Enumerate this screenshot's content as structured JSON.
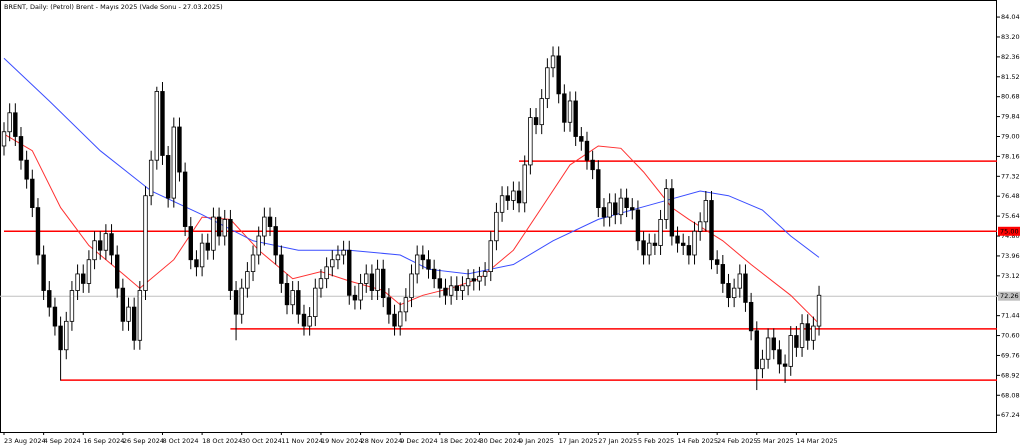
{
  "chart_data": {
    "type": "candlestick",
    "title": "BRENT, Daily:  (Petrol) Brent - Mayıs 2025 (Vade Sonu - 27.03.2025)",
    "categories": [
      "23 Aug 2024",
      null,
      null,
      null,
      null,
      null,
      null,
      "4 Sep 2024",
      null,
      null,
      null,
      null,
      null,
      null,
      "16 Sep 2024",
      null,
      null,
      null,
      null,
      null,
      null,
      "26 Sep 2024",
      null,
      null,
      null,
      null,
      null,
      null,
      "8 Oct 2024",
      null,
      null,
      null,
      null,
      null,
      null,
      "18 Oct 2024",
      null,
      null,
      null,
      null,
      null,
      null,
      "30 Oct 2024",
      null,
      null,
      null,
      null,
      null,
      null,
      "11 Nov 2024",
      null,
      null,
      null,
      null,
      null,
      null,
      "19 Nov 2024",
      null,
      null,
      null,
      null,
      null,
      null,
      "28 Nov 2024",
      null,
      null,
      null,
      null,
      null,
      null,
      "9 Dec 2024",
      null,
      null,
      null,
      null,
      null,
      null,
      "18 Dec 2024",
      null,
      null,
      null,
      null,
      null,
      null,
      "30 Dec 2024",
      null,
      null,
      null,
      null,
      null,
      null,
      "9 Jan 2025",
      null,
      null,
      null,
      null,
      null,
      null,
      "17 Jan 2025",
      null,
      null,
      null,
      null,
      null,
      null,
      "27 Jan 2025",
      null,
      null,
      null,
      null,
      null,
      null,
      "5 Feb 2025",
      null,
      null,
      null,
      null,
      null,
      null,
      "14 Feb 2025",
      null,
      null,
      null,
      null,
      null,
      null,
      "24 Feb 2025",
      null,
      null,
      null,
      null,
      null,
      null,
      "5 Mar 2025",
      null,
      null,
      null,
      null,
      null,
      null,
      "14 Mar 2025",
      null,
      null,
      null,
      null
    ],
    "open": [
      78.6,
      79.2,
      80.0,
      79.0,
      78.0,
      77.2,
      76.0,
      74.0,
      72.5,
      71.8,
      71.0,
      70.0,
      71.2,
      72.5,
      73.2,
      72.8,
      73.8,
      74.6,
      74.2,
      74.9,
      74.0,
      72.6,
      71.2,
      71.8,
      70.4,
      72.5,
      76.5,
      78.0,
      80.9,
      78.2,
      76.4,
      79.4,
      77.5,
      75.2,
      73.8,
      73.5,
      74.5,
      74.2,
      75.6,
      74.8,
      75.5,
      72.5,
      71.5,
      72.6,
      73.3,
      74.0,
      74.8,
      75.6,
      75.2,
      74.0,
      72.8,
      71.9,
      72.5,
      71.5,
      71.0,
      71.4,
      72.6,
      73.0,
      73.5,
      73.8,
      74.0,
      74.2,
      72.3,
      72.1,
      72.8,
      73.2,
      72.5,
      73.4,
      72.2,
      71.5,
      71.0,
      71.6,
      72.2,
      73.2,
      74.0,
      73.8,
      73.4,
      73.0,
      72.6,
      72.3,
      72.7,
      72.5,
      72.7,
      73.0,
      72.9,
      73.1,
      73.3,
      74.6,
      75.8,
      76.5,
      76.3,
      76.7,
      76.2,
      77.8,
      79.8,
      79.5,
      80.6,
      81.9,
      82.4,
      80.8,
      79.6,
      80.5,
      79.0,
      78.8,
      78.0,
      77.6,
      76.0,
      75.6,
      76.2,
      75.7,
      76.4,
      76.0,
      75.9,
      74.6,
      74.0,
      74.5,
      74.4,
      75.5,
      76.8,
      74.8,
      74.5,
      74.4,
      74.0,
      75.0,
      75.4,
      76.3,
      73.8,
      73.6,
      72.8,
      72.2,
      72.6,
      73.2,
      72.0,
      70.8,
      69.2,
      69.6,
      70.5,
      70.0,
      69.4,
      69.3,
      70.6,
      70.1,
      71.1,
      70.4,
      71.0
    ],
    "high": [
      79.6,
      80.4,
      80.4,
      79.4,
      78.4,
      77.6,
      76.4,
      74.4,
      72.9,
      72.2,
      71.4,
      71.6,
      72.9,
      73.6,
      73.6,
      74.2,
      75.0,
      75.0,
      75.3,
      75.3,
      74.4,
      73.0,
      72.2,
      72.2,
      72.9,
      76.9,
      78.4,
      81.1,
      81.3,
      78.6,
      79.8,
      79.8,
      77.9,
      75.6,
      74.2,
      74.9,
      74.9,
      76.0,
      76.0,
      75.9,
      75.9,
      72.9,
      73.0,
      73.7,
      74.4,
      75.2,
      76.0,
      76.0,
      75.6,
      74.4,
      73.2,
      72.9,
      72.9,
      71.9,
      71.8,
      73.0,
      73.4,
      73.9,
      74.2,
      74.4,
      74.6,
      74.6,
      72.7,
      73.2,
      73.6,
      73.6,
      73.8,
      73.8,
      72.6,
      71.9,
      72.0,
      72.6,
      73.6,
      74.4,
      74.4,
      74.2,
      73.8,
      73.4,
      73.0,
      73.1,
      73.1,
      73.1,
      73.4,
      73.4,
      73.5,
      73.7,
      75.0,
      76.2,
      76.9,
      76.9,
      77.1,
      77.1,
      78.2,
      80.2,
      80.2,
      81.0,
      82.3,
      82.8,
      82.8,
      81.2,
      80.9,
      80.9,
      79.4,
      79.2,
      78.4,
      78.0,
      76.4,
      76.6,
      76.6,
      76.8,
      76.8,
      76.4,
      76.3,
      75.0,
      74.9,
      74.9,
      75.9,
      77.2,
      77.2,
      75.2,
      74.9,
      74.8,
      75.4,
      75.8,
      76.7,
      76.7,
      74.2,
      74.0,
      73.2,
      73.0,
      73.6,
      73.6,
      72.4,
      71.2,
      70.0,
      70.9,
      70.9,
      70.4,
      69.8,
      71.0,
      71.0,
      71.5,
      71.5,
      71.4,
      72.7
    ],
    "low": [
      78.2,
      78.8,
      78.6,
      77.6,
      76.8,
      75.6,
      73.6,
      72.1,
      71.4,
      70.6,
      68.7,
      69.6,
      70.8,
      72.1,
      72.4,
      72.4,
      73.4,
      73.8,
      73.8,
      73.6,
      72.2,
      70.8,
      70.8,
      70.0,
      70.0,
      72.1,
      76.1,
      77.6,
      77.8,
      76.0,
      76.0,
      77.1,
      74.8,
      73.4,
      73.1,
      73.1,
      73.8,
      73.8,
      74.4,
      74.4,
      72.1,
      70.4,
      71.1,
      72.2,
      72.9,
      73.6,
      74.4,
      74.8,
      73.6,
      72.4,
      71.5,
      71.5,
      71.1,
      70.6,
      70.6,
      71.0,
      72.2,
      72.6,
      73.1,
      73.4,
      73.6,
      71.9,
      71.7,
      71.7,
      72.4,
      72.1,
      72.1,
      71.8,
      71.1,
      70.6,
      70.6,
      71.2,
      71.8,
      72.8,
      73.4,
      73.0,
      72.6,
      72.2,
      71.9,
      71.9,
      72.1,
      72.1,
      72.3,
      72.5,
      72.5,
      72.7,
      72.9,
      74.2,
      75.4,
      75.9,
      75.9,
      75.8,
      75.8,
      77.4,
      79.1,
      79.1,
      80.2,
      81.5,
      80.4,
      79.2,
      79.2,
      78.6,
      78.4,
      77.6,
      77.2,
      75.6,
      75.2,
      75.2,
      75.3,
      75.3,
      75.6,
      75.5,
      74.2,
      73.6,
      73.6,
      74.0,
      74.0,
      75.1,
      74.4,
      74.1,
      74.0,
      73.6,
      73.6,
      74.6,
      75.0,
      73.4,
      73.2,
      72.4,
      71.8,
      71.8,
      72.2,
      71.6,
      70.4,
      68.3,
      68.8,
      69.2,
      69.6,
      69.0,
      68.6,
      68.9,
      69.7,
      69.7,
      70.0,
      70.0,
      70.6
    ],
    "close": [
      79.2,
      80.0,
      79.0,
      78.0,
      77.2,
      76.0,
      74.0,
      72.5,
      71.8,
      71.0,
      70.0,
      71.2,
      72.5,
      73.2,
      72.8,
      73.8,
      74.6,
      74.2,
      74.9,
      74.0,
      72.6,
      71.2,
      71.8,
      70.4,
      72.5,
      76.5,
      78.0,
      80.9,
      78.2,
      76.4,
      79.4,
      77.5,
      75.2,
      73.8,
      73.5,
      74.5,
      74.2,
      75.6,
      74.8,
      75.5,
      72.5,
      71.5,
      72.6,
      73.3,
      74.0,
      74.8,
      75.6,
      75.2,
      74.0,
      72.8,
      71.9,
      72.5,
      71.5,
      71.0,
      71.4,
      72.6,
      73.0,
      73.5,
      73.8,
      74.0,
      74.2,
      72.3,
      72.1,
      72.8,
      73.2,
      72.5,
      73.4,
      72.2,
      71.5,
      71.0,
      71.6,
      72.2,
      73.2,
      74.0,
      73.8,
      73.4,
      73.0,
      72.6,
      72.3,
      72.7,
      72.5,
      72.7,
      73.0,
      72.9,
      73.1,
      73.3,
      74.6,
      75.8,
      76.5,
      76.3,
      76.7,
      76.2,
      77.8,
      79.8,
      79.5,
      80.6,
      81.9,
      82.4,
      80.8,
      79.6,
      80.5,
      79.0,
      78.8,
      78.0,
      77.6,
      76.0,
      75.6,
      76.2,
      75.7,
      76.4,
      76.0,
      75.9,
      74.6,
      74.0,
      74.5,
      74.4,
      75.5,
      76.8,
      74.8,
      74.5,
      74.4,
      74.0,
      75.0,
      75.4,
      76.3,
      73.8,
      73.6,
      72.8,
      72.2,
      72.6,
      73.2,
      72.0,
      70.8,
      69.2,
      69.6,
      70.5,
      70.0,
      69.4,
      69.3,
      70.6,
      70.1,
      71.1,
      70.4,
      71.0,
      72.3
    ],
    "up_color": "#ffffff",
    "down_color": "#000000",
    "ylim": [
      66.53,
      84.76
    ],
    "yticks": [
      84.04,
      {
        "value": 83.2,
        "label": "83.20"
      },
      82.36,
      81.52,
      80.68,
      79.84,
      {
        "value": 79,
        "label": "79.00"
      },
      78.16,
      77.32,
      76.48,
      75.64,
      {
        "value": 74.8,
        "label": "74.80"
      },
      73.96,
      73.12,
      72.28,
      71.44,
      {
        "value": 70.6,
        "label": "70.60"
      },
      69.76,
      68.92,
      68.08,
      67.24
    ],
    "overlays": [
      {
        "color": "#ff3030",
        "x": [
          0,
          5,
          10,
          15,
          21,
          24,
          30,
          35,
          40,
          45,
          51,
          56,
          61,
          67,
          70,
          74,
          79,
          84,
          90,
          95,
          100,
          105,
          109,
          113,
          118,
          121,
          127,
          132,
          139,
          144
        ],
        "values": [
          79.1,
          78.4,
          76.0,
          74.4,
          73.2,
          72.6,
          73.8,
          75.6,
          75.5,
          74.2,
          73.0,
          73.3,
          72.9,
          72.5,
          71.9,
          72.3,
          72.6,
          73.0,
          74.2,
          76.0,
          77.8,
          78.6,
          78.5,
          77.5,
          76.0,
          75.5,
          74.6,
          73.6,
          72.3,
          71.1
        ]
      },
      {
        "color": "#3a4dff",
        "x": [
          0,
          8,
          17,
          26,
          35,
          44,
          52,
          61,
          70,
          75,
          82,
          90,
          97,
          105,
          114,
          123,
          128,
          134,
          139,
          144
        ],
        "values": [
          82.3,
          80.5,
          78.4,
          76.7,
          75.7,
          74.6,
          74.2,
          74.2,
          74.0,
          73.4,
          73.2,
          73.6,
          74.6,
          75.5,
          76.1,
          76.7,
          76.5,
          75.9,
          74.8,
          73.9
        ]
      }
    ],
    "levels": [
      {
        "value": 77.96,
        "from": 91,
        "color": "#ff0000"
      },
      {
        "value": 75,
        "from": 0,
        "color": "#ff0000"
      },
      {
        "value": 70.88,
        "from": 40,
        "color": "#ff0000"
      },
      {
        "value": 68.72,
        "from": 10,
        "color": "#ff0000"
      }
    ],
    "price_labels": [
      {
        "value": 75,
        "label": "75.00",
        "color": "#ff0000"
      },
      {
        "value": 72.26,
        "label": "72.26",
        "color": "#c0c0c0"
      }
    ]
  }
}
